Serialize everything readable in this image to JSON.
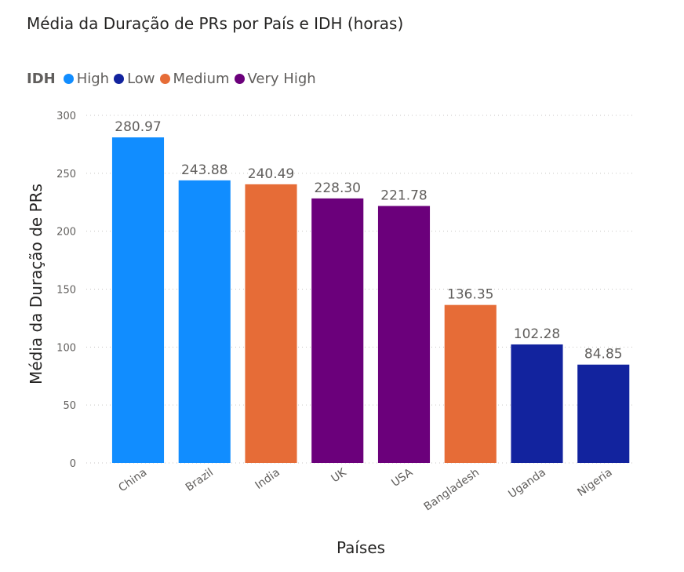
{
  "chart_data": {
    "type": "bar",
    "title": "Média da Duração de PRs por País e IDH (horas)",
    "xlabel": "Países",
    "ylabel": "Média da Duração de PRs",
    "ylim": [
      0,
      300
    ],
    "yticks": [
      0,
      50,
      100,
      150,
      200,
      250,
      300
    ],
    "grid": "horizontal dotted",
    "legend": {
      "title": "IDH",
      "placement": "top-left",
      "entries": [
        {
          "name": "High",
          "color": "#118dff"
        },
        {
          "name": "Low",
          "color": "#12239e"
        },
        {
          "name": "Medium",
          "color": "#e66c37"
        },
        {
          "name": "Very High",
          "color": "#6b007b"
        }
      ]
    },
    "categories": [
      "China",
      "Brazil",
      "India",
      "UK",
      "USA",
      "Bangladesh",
      "Uganda",
      "Nigeria"
    ],
    "values": [
      280.97,
      243.88,
      240.49,
      228.3,
      221.78,
      136.35,
      102.28,
      84.85
    ],
    "value_labels": [
      "280.97",
      "243.88",
      "240.49",
      "228.30",
      "221.78",
      "136.35",
      "102.28",
      "84.85"
    ],
    "idh": [
      "High",
      "High",
      "Medium",
      "Very High",
      "Very High",
      "Medium",
      "Low",
      "Low"
    ]
  }
}
